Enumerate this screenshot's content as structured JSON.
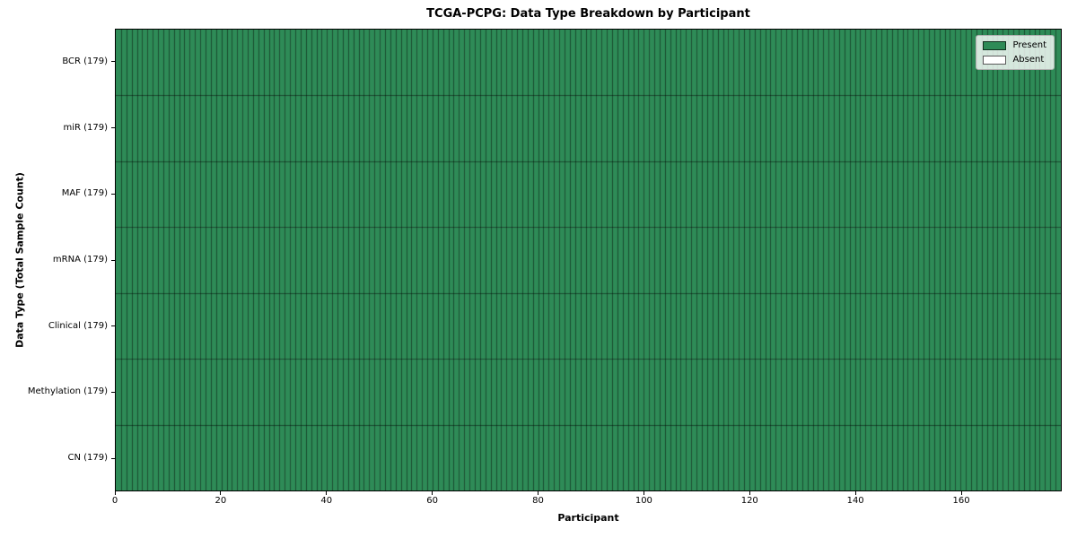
{
  "chart_data": {
    "type": "heatmap",
    "title": "TCGA-PCPG: Data Type Breakdown by Participant",
    "xlabel": "Participant",
    "ylabel": "Data Type (Total Sample Count)",
    "x_range": [
      0,
      179
    ],
    "x_ticks": [
      0,
      20,
      40,
      60,
      80,
      100,
      120,
      140,
      160
    ],
    "n_participants": 179,
    "rows": [
      {
        "label": "BCR (179)",
        "data_type": "BCR",
        "total_samples": 179,
        "present_count": 179,
        "absent_count": 0
      },
      {
        "label": "miR (179)",
        "data_type": "miR",
        "total_samples": 179,
        "present_count": 179,
        "absent_count": 0
      },
      {
        "label": "MAF (179)",
        "data_type": "MAF",
        "total_samples": 179,
        "present_count": 179,
        "absent_count": 0
      },
      {
        "label": "mRNA (179)",
        "data_type": "mRNA",
        "total_samples": 179,
        "present_count": 179,
        "absent_count": 0
      },
      {
        "label": "Clinical (179)",
        "data_type": "Clinical",
        "total_samples": 179,
        "present_count": 179,
        "absent_count": 0
      },
      {
        "label": "Methylation (179)",
        "data_type": "Methylation",
        "total_samples": 179,
        "present_count": 179,
        "absent_count": 0
      },
      {
        "label": "CN (179)",
        "data_type": "CN",
        "total_samples": 179,
        "present_count": 179,
        "absent_count": 0
      }
    ],
    "legend": {
      "position": "upper right",
      "entries": [
        {
          "label": "Present",
          "color": "#2e8b57"
        },
        {
          "label": "Absent",
          "color": "#ffffff"
        }
      ]
    },
    "colors": {
      "present": "#2e8b57",
      "absent": "#ffffff",
      "cell_edge": "rgba(0,0,0,0.5)"
    },
    "grid": "cell-borders",
    "legend_visible": true
  }
}
